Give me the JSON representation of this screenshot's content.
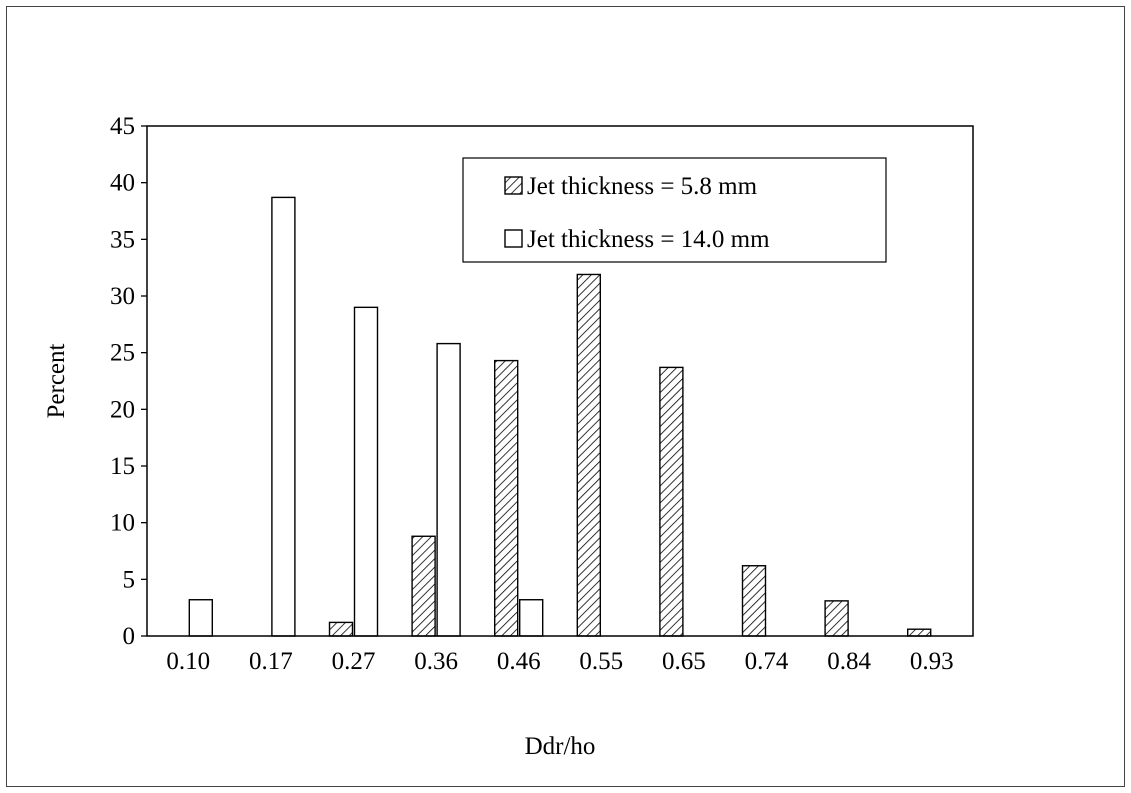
{
  "chart_data": {
    "type": "bar",
    "title": "",
    "xlabel": "Ddr/ho",
    "ylabel": "Percent",
    "categories": [
      "0.10",
      "0.17",
      "0.27",
      "0.36",
      "0.46",
      "0.55",
      "0.65",
      "0.74",
      "0.84",
      "0.93"
    ],
    "ylim": [
      0,
      45
    ],
    "yticks": [
      0,
      5,
      10,
      15,
      20,
      25,
      30,
      35,
      40,
      45
    ],
    "grid": false,
    "legend_position": "top-right",
    "series": [
      {
        "name": "Jet thickness = 5.8 mm",
        "pattern": "diagonal-hatch",
        "values": [
          0,
          0,
          1.2,
          8.8,
          24.3,
          31.9,
          23.7,
          6.2,
          3.1,
          0.6
        ]
      },
      {
        "name": "Jet thickness = 14.0 mm",
        "pattern": "none",
        "values": [
          3.2,
          38.7,
          29.0,
          25.8,
          3.2,
          0,
          0,
          0,
          0,
          0
        ]
      }
    ]
  }
}
